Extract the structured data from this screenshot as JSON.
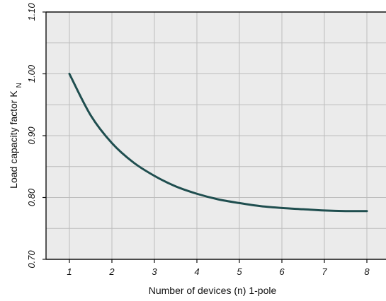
{
  "chart_data": {
    "type": "line",
    "title": "",
    "xlabel": "Number of devices (n) 1-pole",
    "ylabel": "Load capacity factor K",
    "ylabel_subscript": "N",
    "xlim": [
      0.45,
      8.45
    ],
    "ylim": [
      0.7,
      1.1
    ],
    "x_ticks": [
      1,
      2,
      3,
      4,
      5,
      6,
      7,
      8
    ],
    "x_tick_labels": [
      "1",
      "2",
      "3",
      "4",
      "5",
      "6",
      "7",
      "8"
    ],
    "y_ticks": [
      0.7,
      0.8,
      0.9,
      1.0,
      1.1
    ],
    "y_tick_labels": [
      "0.70",
      "0.80",
      "0.90",
      "1.00",
      "1.10"
    ],
    "grid": true,
    "legend": "none",
    "series": [
      {
        "x": [
          1,
          1.5,
          2,
          2.5,
          3,
          3.5,
          4,
          4.5,
          5,
          5.5,
          6,
          6.5,
          7,
          7.5,
          8
        ],
        "values": [
          1.0,
          0.933,
          0.888,
          0.857,
          0.835,
          0.818,
          0.806,
          0.797,
          0.791,
          0.786,
          0.783,
          0.781,
          0.779,
          0.778,
          0.778
        ]
      }
    ],
    "colors": {
      "background": "#ebebeb",
      "grid": "#bdbdbd",
      "axis": "#111111",
      "line": "#1f4e4f"
    }
  }
}
